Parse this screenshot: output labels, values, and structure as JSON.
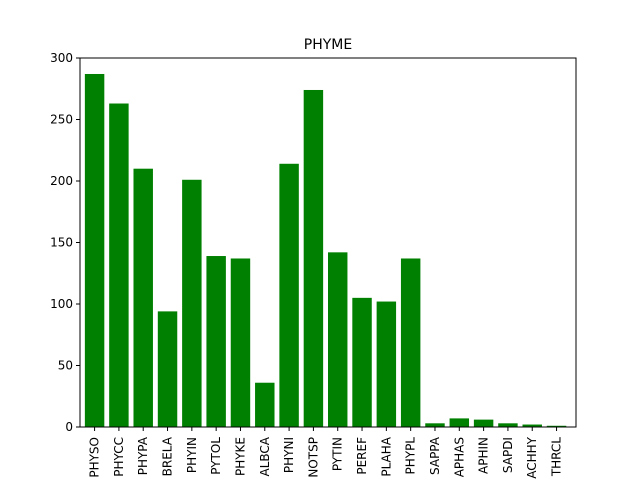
{
  "chart_data": {
    "type": "bar",
    "title": "PHYME",
    "xlabel": "",
    "ylabel": "",
    "categories": [
      "PHYSO",
      "PHYCC",
      "PHYPA",
      "BRELA",
      "PHYIN",
      "PYTOL",
      "PHYKE",
      "ALBCA",
      "PHYNI",
      "NOTSP",
      "PYTIN",
      "PEREF",
      "PLAHA",
      "PHYPL",
      "SAPPA",
      "APHAS",
      "APHIN",
      "SAPDI",
      "ACHHY",
      "THRCL"
    ],
    "values": [
      287,
      263,
      210,
      94,
      201,
      139,
      137,
      36,
      214,
      274,
      142,
      105,
      102,
      137,
      3,
      7,
      6,
      3,
      2,
      1
    ],
    "ylim": [
      0,
      300
    ],
    "yticks": [
      0,
      50,
      100,
      150,
      200,
      250,
      300
    ],
    "grid": false,
    "bar_color": "#008000"
  }
}
